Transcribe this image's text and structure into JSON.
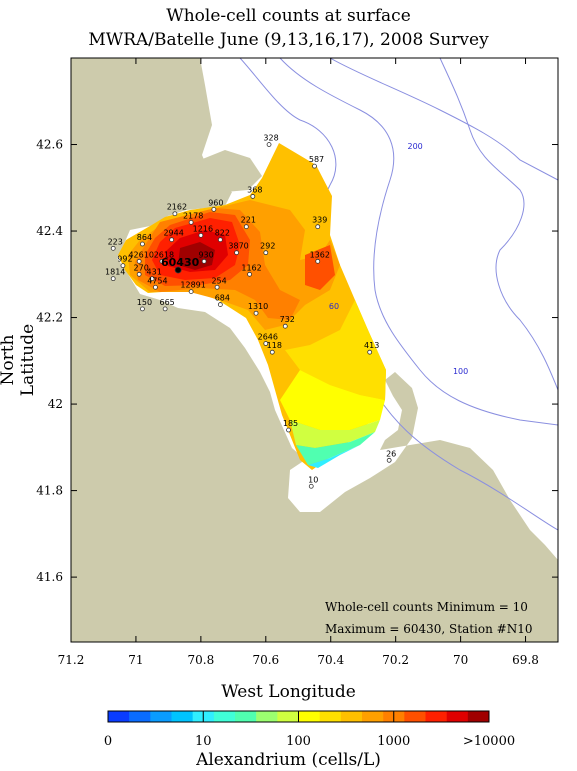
{
  "title_line1": "Whole-cell counts at surface",
  "title_line2": "MWRA/Batelle June (9,13,16,17), 2008 Survey",
  "xlabel": "West Longitude",
  "ylabel": "North Latitude",
  "colorbar_label": "Alexandrium (cells/L)",
  "note_min": "Whole-cell counts Minimum = 10",
  "note_max": "Maximum = 60430, Station #N10",
  "colors": {
    "land": "#cdcbac",
    "contour": "#8a8fe0",
    "frame": "#000000"
  },
  "chart_data": {
    "type": "map",
    "x_ticks": [
      "71.2",
      "71",
      "70.8",
      "70.6",
      "70.4",
      "70.2",
      "70",
      "69.8"
    ],
    "y_ticks": [
      "41.6",
      "41.8",
      "42",
      "42.2",
      "42.4",
      "42.6"
    ],
    "x_range": [
      -71.2,
      -69.7
    ],
    "y_range": [
      41.45,
      42.8
    ],
    "depth_labels": [
      {
        "text": "200",
        "lon": -70.14,
        "lat": 42.59
      },
      {
        "text": "60",
        "lon": -70.39,
        "lat": 42.22
      },
      {
        "text": "100",
        "lon": -70.0,
        "lat": 42.07
      }
    ],
    "colorbar": {
      "ticks": [
        "0",
        "10",
        "100",
        "1000",
        ">10000"
      ],
      "colors": [
        "#0a3cff",
        "#0a6cff",
        "#0a9cff",
        "#00c4ff",
        "#30eeff",
        "#40ffd8",
        "#50ffb0",
        "#9cff70",
        "#d0ff40",
        "#ffff00",
        "#ffe000",
        "#ffc000",
        "#ffa000",
        "#ff8000",
        "#ff5000",
        "#ff2000",
        "#e00000",
        "#a00000"
      ]
    },
    "stations": [
      {
        "label": "328",
        "lon": -70.59,
        "lat": 42.6,
        "value": 328
      },
      {
        "label": "587",
        "lon": -70.45,
        "lat": 42.55,
        "value": 587
      },
      {
        "label": "368",
        "lon": -70.64,
        "lat": 42.48,
        "value": 368
      },
      {
        "label": "960",
        "lon": -70.76,
        "lat": 42.45,
        "value": 960
      },
      {
        "label": "2162",
        "lon": -70.88,
        "lat": 42.44,
        "value": 2162
      },
      {
        "label": "2178",
        "lon": -70.83,
        "lat": 42.42,
        "value": 2178
      },
      {
        "label": "221",
        "lon": -70.66,
        "lat": 42.41,
        "value": 221
      },
      {
        "label": "339",
        "lon": -70.44,
        "lat": 42.41,
        "value": 339
      },
      {
        "label": "822",
        "lon": -70.74,
        "lat": 42.38,
        "value": 822
      },
      {
        "label": "1216",
        "lon": -70.8,
        "lat": 42.39,
        "value": 1216
      },
      {
        "label": "2944",
        "lon": -70.89,
        "lat": 42.38,
        "value": 2944
      },
      {
        "label": "864",
        "lon": -70.98,
        "lat": 42.37,
        "value": 864
      },
      {
        "label": "223",
        "lon": -71.07,
        "lat": 42.36,
        "value": 223
      },
      {
        "label": "3870",
        "lon": -70.69,
        "lat": 42.35,
        "value": 3870
      },
      {
        "label": "292",
        "lon": -70.6,
        "lat": 42.35,
        "value": 292
      },
      {
        "label": "1362",
        "lon": -70.44,
        "lat": 42.33,
        "value": 1362
      },
      {
        "label": "930",
        "lon": -70.79,
        "lat": 42.33,
        "value": 930
      },
      {
        "label": "42610",
        "lon": -70.99,
        "lat": 42.33,
        "value": 42610
      },
      {
        "label": "2618",
        "lon": -70.92,
        "lat": 42.33,
        "value": 2618
      },
      {
        "label": "992",
        "lon": -71.04,
        "lat": 42.32,
        "value": 992
      },
      {
        "label": "60430",
        "lon": -70.87,
        "lat": 42.31,
        "value": 60430
      },
      {
        "label": "1162",
        "lon": -70.65,
        "lat": 42.3,
        "value": 1162
      },
      {
        "label": "1814",
        "lon": -71.07,
        "lat": 42.29,
        "value": 1814
      },
      {
        "label": "270",
        "lon": -70.99,
        "lat": 42.3,
        "value": 270
      },
      {
        "label": "431",
        "lon": -70.95,
        "lat": 42.29,
        "value": 431
      },
      {
        "label": "254",
        "lon": -70.75,
        "lat": 42.27,
        "value": 254
      },
      {
        "label": "4754",
        "lon": -70.94,
        "lat": 42.27,
        "value": 4754
      },
      {
        "label": "12891",
        "lon": -70.83,
        "lat": 42.26,
        "value": 12891
      },
      {
        "label": "684",
        "lon": -70.74,
        "lat": 42.23,
        "value": 684
      },
      {
        "label": "150",
        "lon": -70.98,
        "lat": 42.22,
        "value": 150
      },
      {
        "label": "665",
        "lon": -70.91,
        "lat": 42.22,
        "value": 665
      },
      {
        "label": "1310",
        "lon": -70.63,
        "lat": 42.21,
        "value": 1310
      },
      {
        "label": "732",
        "lon": -70.54,
        "lat": 42.18,
        "value": 732
      },
      {
        "label": "2646",
        "lon": -70.6,
        "lat": 42.14,
        "value": 2646
      },
      {
        "label": "118",
        "lon": -70.58,
        "lat": 42.12,
        "value": 118
      },
      {
        "label": "413",
        "lon": -70.28,
        "lat": 42.12,
        "value": 413
      },
      {
        "label": "185",
        "lon": -70.53,
        "lat": 41.94,
        "value": 185
      },
      {
        "label": "26",
        "lon": -70.22,
        "lat": 41.87,
        "value": 26
      },
      {
        "label": "10",
        "lon": -70.46,
        "lat": 41.81,
        "value": 10
      }
    ]
  }
}
